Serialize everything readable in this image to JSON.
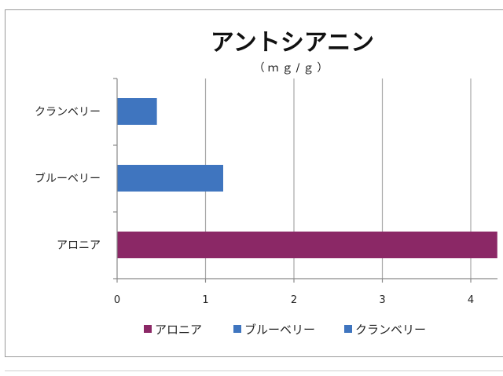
{
  "chart_data": {
    "type": "bar",
    "orientation": "horizontal",
    "title": "アントシアニン",
    "subtitle": "（ｍｇ/ｇ）",
    "categories": [
      "アロニア",
      "ブルーベリー",
      "クランベリー"
    ],
    "values": [
      4.3,
      1.2,
      0.45
    ],
    "colors": [
      "#8b2866",
      "#3f75bf",
      "#3f75bf"
    ],
    "xlim": [
      0,
      4.3
    ],
    "xticks": [
      0,
      1,
      2,
      3,
      4
    ],
    "grid": true,
    "legend_position": "bottom",
    "legend": [
      {
        "label": "アロニア",
        "color": "#8b2866"
      },
      {
        "label": "ブルーベリー",
        "color": "#3f75bf"
      },
      {
        "label": "クランベリー",
        "color": "#3f75bf"
      }
    ]
  }
}
